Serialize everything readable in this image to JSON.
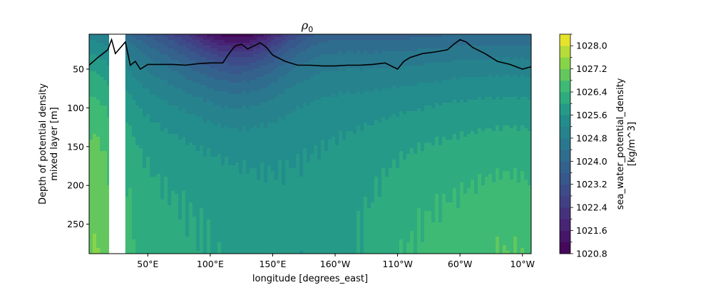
{
  "chart_data": {
    "type": "heatmap",
    "title": "ρ",
    "title_subscript": "0",
    "xlabel": "longitude [degrees_east]",
    "ylabel_lines": [
      "Depth of potential density",
      "mixed layer [m]"
    ],
    "x_tick_labels": [
      "50°E",
      "100°E",
      "150°E",
      "160°W",
      "110°W",
      "60°W",
      "10°W"
    ],
    "x_tick_values": [
      50,
      100,
      150,
      200,
      250,
      300,
      350
    ],
    "xlim": [
      3,
      357
    ],
    "y_tick_labels": [
      "50",
      "100",
      "150",
      "200",
      "250"
    ],
    "y_tick_values": [
      50,
      100,
      150,
      200,
      250
    ],
    "ylim": [
      288,
      5
    ],
    "colorbar": {
      "label_lines": [
        "sea_water_potential_density",
        "[kg/m^3]"
      ],
      "tick_labels": [
        "1020.8",
        "1021.6",
        "1022.4",
        "1023.2",
        "1024.0",
        "1024.8",
        "1025.6",
        "1026.4",
        "1027.2",
        "1028.0"
      ],
      "tick_values": [
        1020.8,
        1021.6,
        1022.4,
        1023.2,
        1024.0,
        1024.8,
        1025.6,
        1026.4,
        1027.2,
        1028.0
      ],
      "range": [
        1020.8,
        1028.4
      ],
      "level_step": 0.4
    },
    "missing_data_longitude_range": [
      19,
      32
    ],
    "mixed_layer_depth_line": {
      "color": "#000000",
      "longitude": [
        3,
        10,
        18,
        21,
        24,
        32,
        36,
        40,
        44,
        50,
        60,
        70,
        80,
        90,
        100,
        110,
        115,
        120,
        125,
        130,
        135,
        140,
        145,
        150,
        160,
        170,
        180,
        190,
        200,
        210,
        220,
        230,
        240,
        250,
        255,
        260,
        270,
        280,
        290,
        295,
        300,
        305,
        310,
        320,
        330,
        340,
        350,
        357
      ],
      "depth": [
        45,
        35,
        25,
        12,
        30,
        15,
        45,
        40,
        50,
        44,
        44,
        44,
        45,
        43,
        42,
        42,
        30,
        20,
        18,
        24,
        20,
        16,
        22,
        32,
        40,
        45,
        45,
        46,
        46,
        45,
        45,
        44,
        42,
        50,
        40,
        35,
        30,
        28,
        25,
        18,
        12,
        15,
        22,
        30,
        40,
        44,
        50,
        47
      ]
    }
  }
}
